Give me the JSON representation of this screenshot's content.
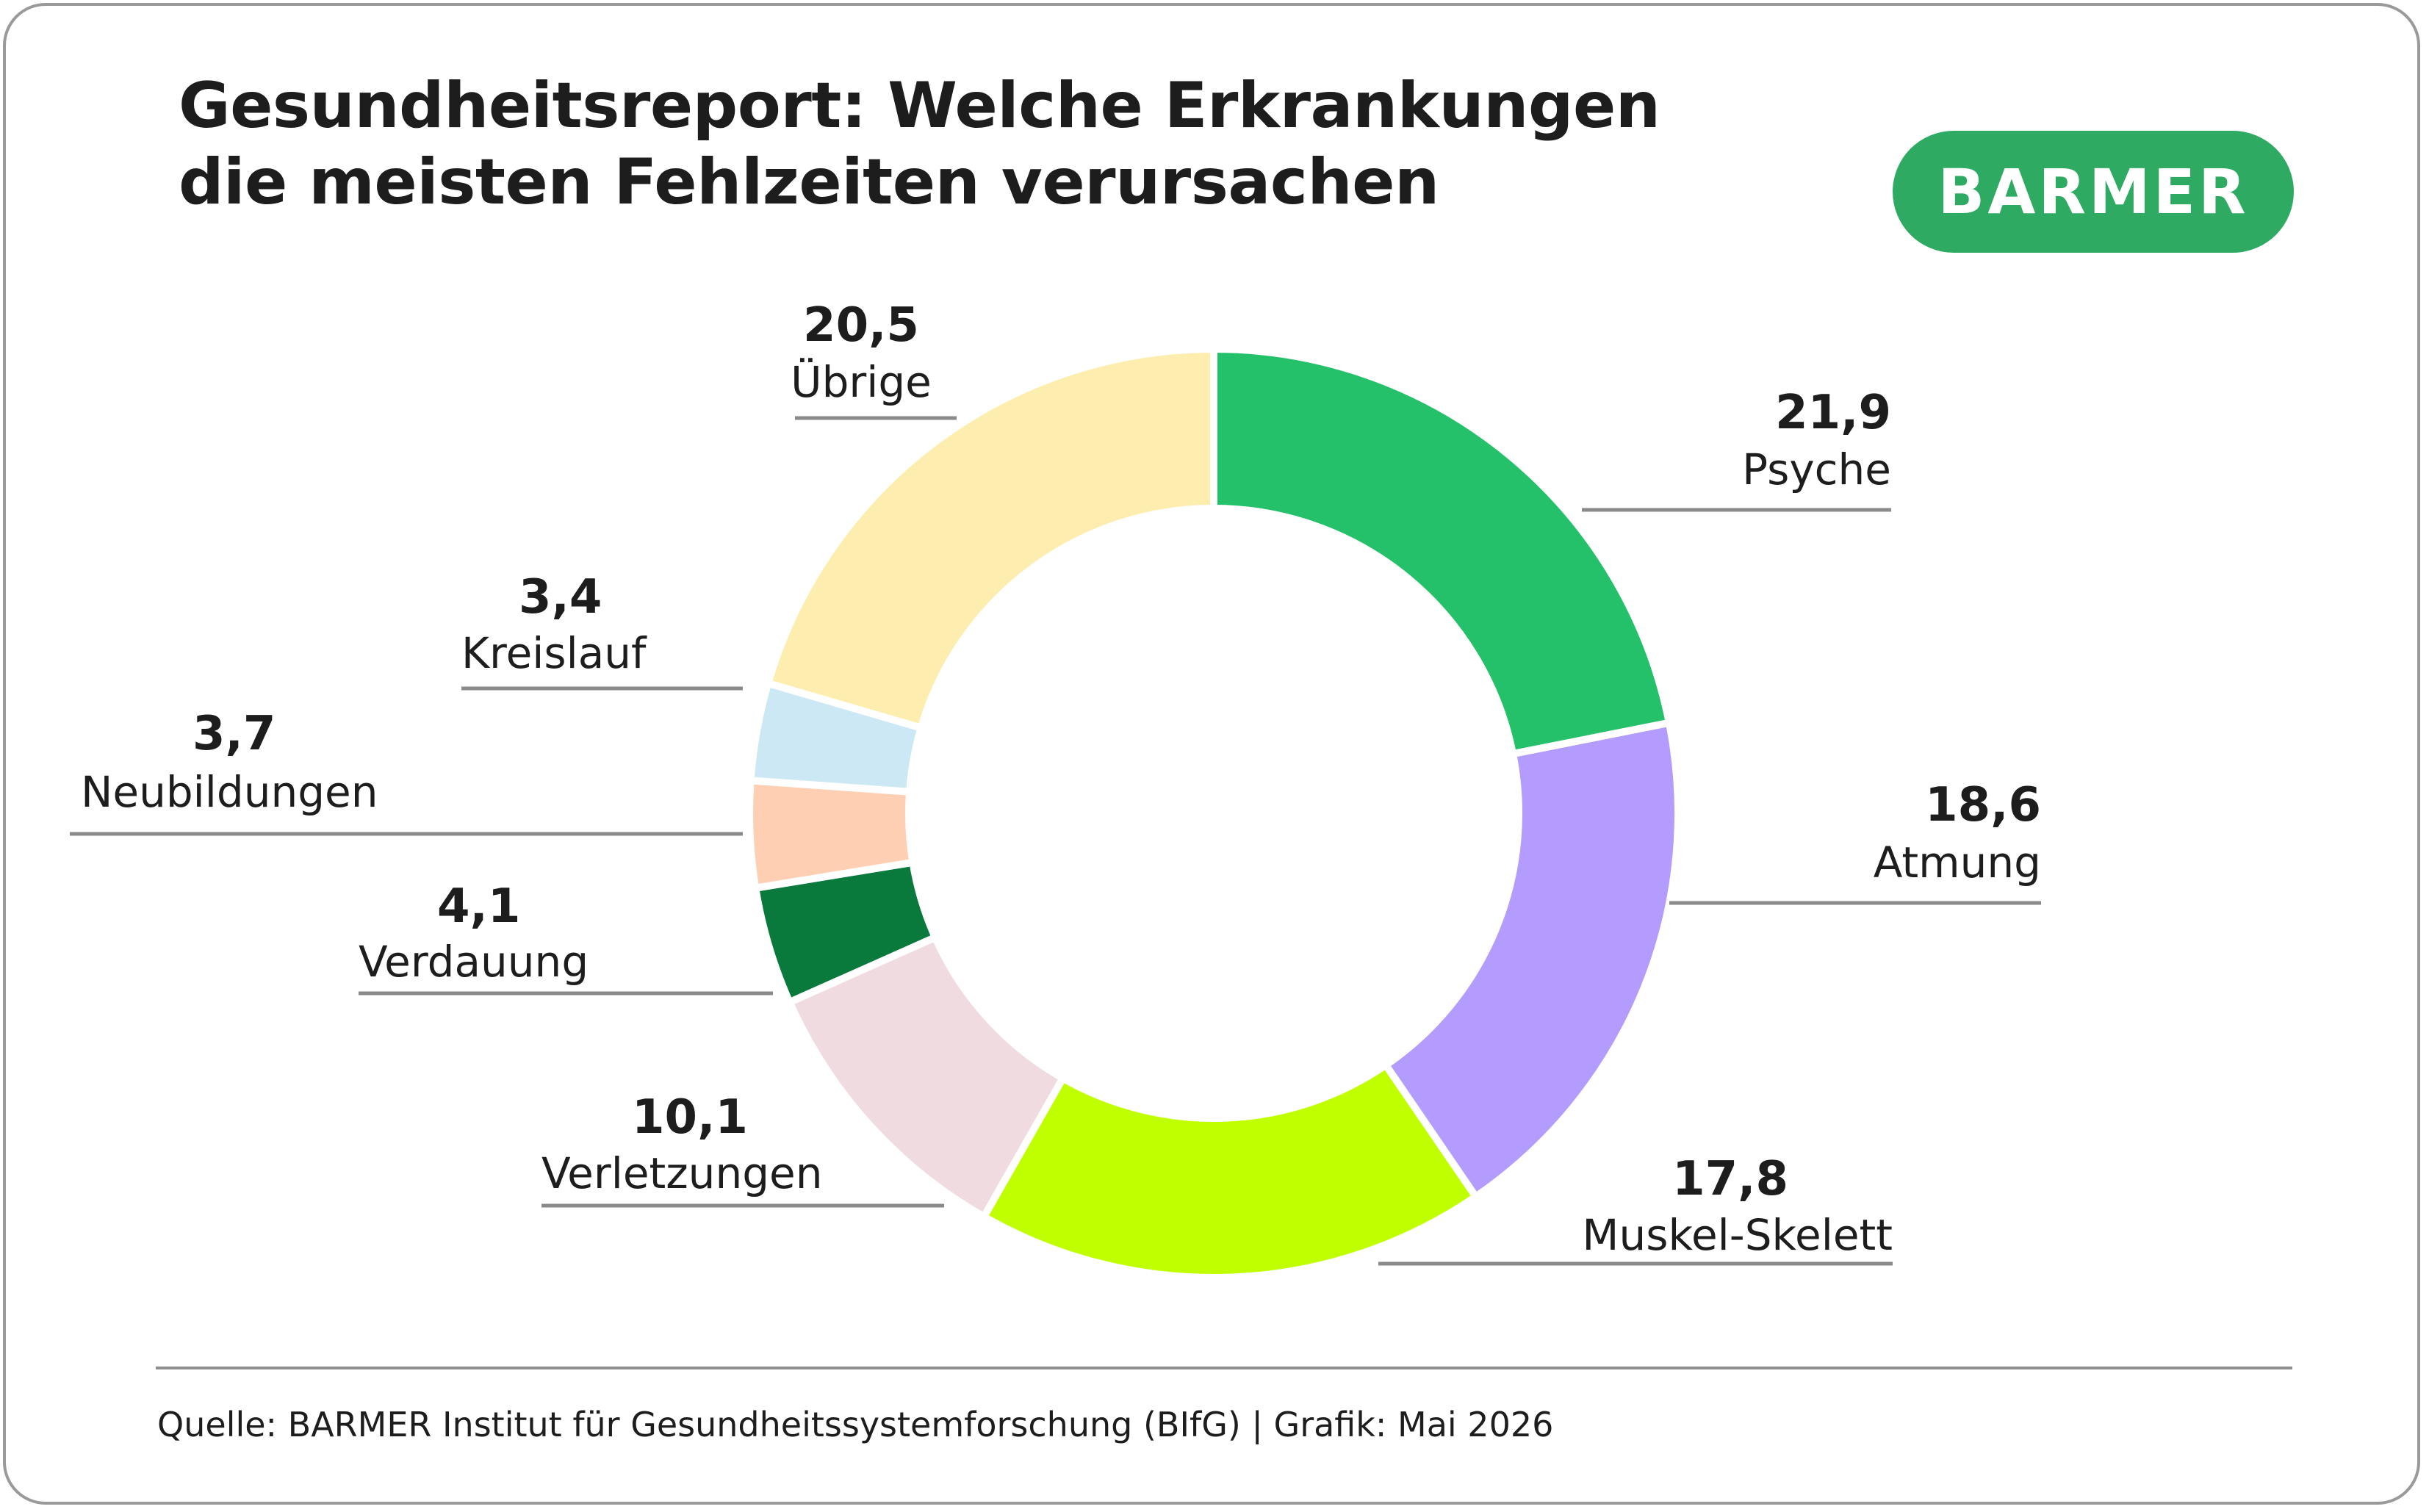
{
  "title_line1": "Gesundheitsreport: Welche Erkrankungen",
  "title_line2": "die meisten Fehlzeiten verursachen",
  "logo": "BARMER",
  "source": "Quelle: BARMER Institut für Gesundheitssystemforschung (BIfG) | Grafik: Mai 2026",
  "colors": {
    "logo_bg": "#2eaa63",
    "leader_line": "#8a8a8a"
  },
  "chart_data": {
    "type": "pie",
    "variant": "donut",
    "title": "Gesundheitsreport: Welche Erkrankungen die meisten Fehlzeiten verursachen",
    "slices": [
      {
        "label": "Psyche",
        "value": 21.9,
        "value_label": "21,9",
        "color": "#25c16a"
      },
      {
        "label": "Atmung",
        "value": 18.6,
        "value_label": "18,6",
        "color": "#b49cff"
      },
      {
        "label": "Muskel-Skelett",
        "value": 17.8,
        "value_label": "17,8",
        "color": "#bfff00"
      },
      {
        "label": "Verletzungen",
        "value": 10.1,
        "value_label": "10,1",
        "color": "#f0dbe0"
      },
      {
        "label": "Verdauung",
        "value": 4.1,
        "value_label": "4,1",
        "color": "#0a7a3c"
      },
      {
        "label": "Neubildungen",
        "value": 3.7,
        "value_label": "3,7",
        "color": "#ffcfb4"
      },
      {
        "label": "Kreislauf",
        "value": 3.4,
        "value_label": "3,4",
        "color": "#cce8f4"
      },
      {
        "label": "Übrige",
        "value": 20.5,
        "value_label": "20,5",
        "color": "#fdeeb0"
      }
    ]
  }
}
